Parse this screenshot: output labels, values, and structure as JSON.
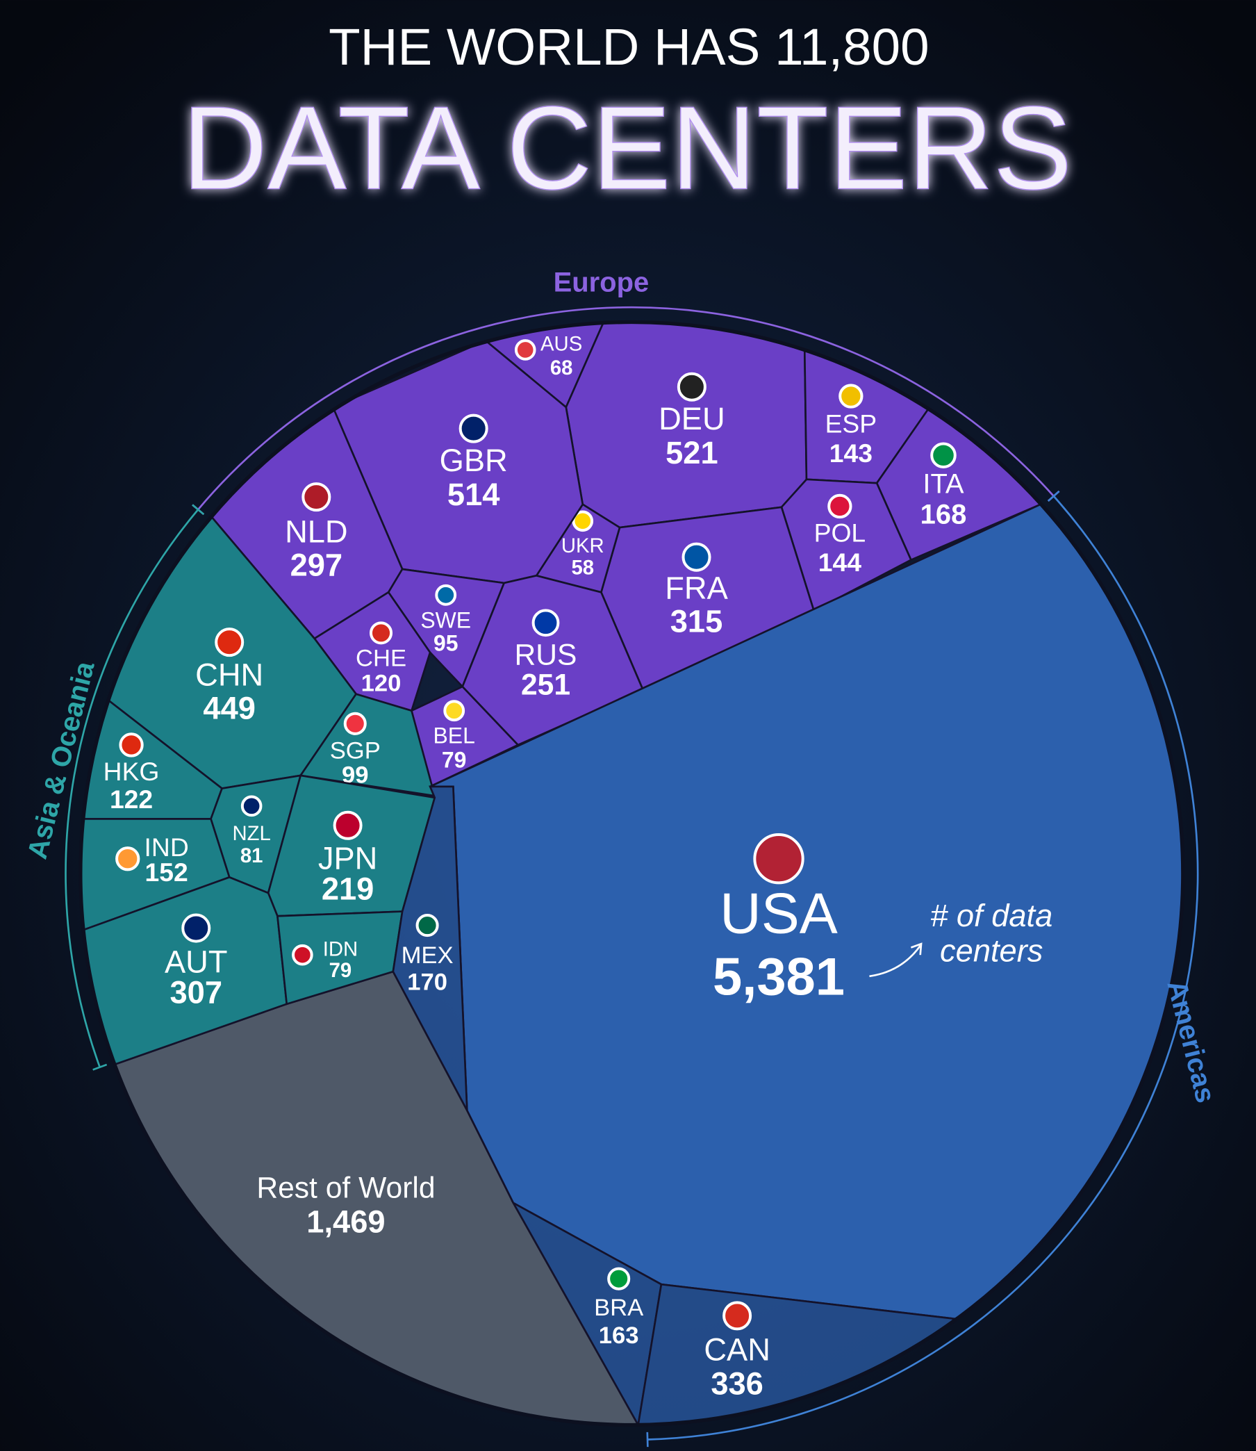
{
  "chart_data": {
    "type": "voronoi-treemap",
    "title": "THE WORLD HAS 11,800",
    "subtitle": "DATA CENTERS",
    "annotation": [
      "# of data",
      "centers"
    ],
    "groups": [
      {
        "name": "Europe",
        "color": "#6a3fc6",
        "categories": [
          "AUS",
          "DEU",
          "ESP",
          "ITA",
          "POL",
          "FRA",
          "UKR",
          "GBR",
          "NLD",
          "SWE",
          "CHE",
          "RUS",
          "BEL"
        ],
        "values": [
          68,
          521,
          143,
          168,
          144,
          315,
          58,
          514,
          297,
          95,
          120,
          251,
          79
        ]
      },
      {
        "name": "Asia & Oceania",
        "color": "#1c7f87",
        "categories": [
          "CHN",
          "SGP",
          "HKG",
          "NZL",
          "IND",
          "JPN",
          "AUT",
          "IDN"
        ],
        "values": [
          449,
          99,
          122,
          81,
          152,
          219,
          307,
          79
        ]
      },
      {
        "name": "Americas",
        "color": "#2c60ad",
        "categories": [
          "USA",
          "MEX",
          "BRA",
          "CAN"
        ],
        "values": [
          5381,
          170,
          163,
          336
        ],
        "value_labels": [
          "5,381",
          "170",
          "163",
          "336"
        ]
      }
    ],
    "other": {
      "label": "Rest of World",
      "value": 1469,
      "value_label": "1,469",
      "color": "#4f5968"
    }
  }
}
